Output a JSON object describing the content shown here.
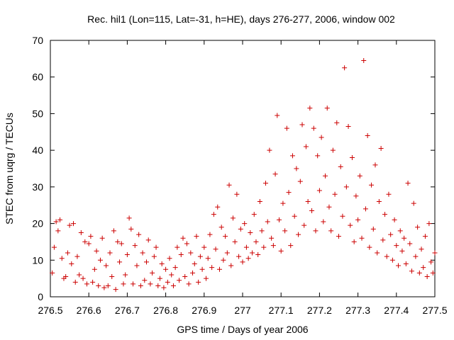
{
  "chart_data": {
    "type": "scatter",
    "title": "Rec. hil1 (Lon=115, Lat=-31, h=HE), days 276-277, 2006, window 002",
    "xlabel": "GPS time / Days of year 2006",
    "ylabel": "STEC from uqrg / TECUs",
    "xlim": [
      276.5,
      277.5
    ],
    "ylim": [
      0,
      70
    ],
    "x_ticks": [
      "276.5",
      "276.6",
      "276.7",
      "276.8",
      "276.9",
      "277",
      "277.1",
      "277.2",
      "277.3",
      "277.4",
      "277.5"
    ],
    "y_ticks": [
      "0",
      "10",
      "20",
      "30",
      "40",
      "50",
      "60",
      "70"
    ],
    "grid": false,
    "marker": "plus",
    "series_color": "#cc0000",
    "series": [
      {
        "values": [
          [
            276.505,
            6.5
          ],
          [
            276.51,
            13.5
          ],
          [
            276.515,
            20.5
          ],
          [
            276.52,
            18
          ],
          [
            276.525,
            21
          ],
          [
            276.53,
            10.5
          ],
          [
            276.535,
            5
          ],
          [
            276.54,
            5.5
          ],
          [
            276.545,
            12
          ],
          [
            276.55,
            19.5
          ],
          [
            276.555,
            9
          ],
          [
            276.56,
            20
          ],
          [
            276.565,
            4
          ],
          [
            276.57,
            11
          ],
          [
            276.575,
            6
          ],
          [
            276.58,
            17.5
          ],
          [
            276.585,
            5
          ],
          [
            276.59,
            15
          ],
          [
            276.595,
            3.5
          ],
          [
            276.6,
            14.5
          ],
          [
            276.605,
            16.5
          ],
          [
            276.61,
            4
          ],
          [
            276.615,
            7.5
          ],
          [
            276.62,
            12.5
          ],
          [
            276.625,
            3
          ],
          [
            276.63,
            10
          ],
          [
            276.635,
            16
          ],
          [
            276.64,
            2.5
          ],
          [
            276.645,
            8.5
          ],
          [
            276.65,
            3
          ],
          [
            276.655,
            12
          ],
          [
            276.66,
            5.5
          ],
          [
            276.665,
            18
          ],
          [
            276.67,
            2
          ],
          [
            276.675,
            15
          ],
          [
            276.68,
            9.5
          ],
          [
            276.685,
            14.5
          ],
          [
            276.69,
            3.5
          ],
          [
            276.695,
            6
          ],
          [
            276.7,
            11.5
          ],
          [
            276.705,
            21.5
          ],
          [
            276.71,
            18.5
          ],
          [
            276.715,
            3.5
          ],
          [
            276.72,
            14
          ],
          [
            276.725,
            8.5
          ],
          [
            276.73,
            17
          ],
          [
            276.735,
            3
          ],
          [
            276.74,
            12
          ],
          [
            276.745,
            4.5
          ],
          [
            276.75,
            9.5
          ],
          [
            276.755,
            15.5
          ],
          [
            276.76,
            3.5
          ],
          [
            276.765,
            6.5
          ],
          [
            276.77,
            11
          ],
          [
            276.775,
            13.5
          ],
          [
            276.78,
            3
          ],
          [
            276.785,
            5
          ],
          [
            276.79,
            9
          ],
          [
            276.795,
            2.5
          ],
          [
            276.8,
            7.5
          ],
          [
            276.805,
            4
          ],
          [
            276.81,
            10.5
          ],
          [
            276.815,
            6
          ],
          [
            276.82,
            3
          ],
          [
            276.825,
            8
          ],
          [
            276.83,
            13.5
          ],
          [
            276.835,
            4.5
          ],
          [
            276.84,
            11.5
          ],
          [
            276.845,
            16
          ],
          [
            276.85,
            5.5
          ],
          [
            276.855,
            14.5
          ],
          [
            276.86,
            3.5
          ],
          [
            276.865,
            12
          ],
          [
            276.87,
            6.5
          ],
          [
            276.875,
            9
          ],
          [
            276.88,
            16.5
          ],
          [
            276.885,
            4
          ],
          [
            276.89,
            11
          ],
          [
            276.895,
            7.5
          ],
          [
            276.9,
            13.5
          ],
          [
            276.905,
            5
          ],
          [
            276.91,
            10.5
          ],
          [
            276.915,
            17
          ],
          [
            276.92,
            8
          ],
          [
            276.925,
            22.5
          ],
          [
            276.93,
            13
          ],
          [
            276.935,
            24.5
          ],
          [
            276.94,
            7.5
          ],
          [
            276.945,
            19
          ],
          [
            276.95,
            10
          ],
          [
            276.955,
            16.5
          ],
          [
            276.96,
            12
          ],
          [
            276.965,
            30.5
          ],
          [
            276.97,
            8.5
          ],
          [
            276.975,
            21.5
          ],
          [
            276.98,
            15
          ],
          [
            276.985,
            28
          ],
          [
            276.99,
            11
          ],
          [
            276.995,
            18.5
          ],
          [
            277.0,
            9.5
          ],
          [
            277.005,
            20
          ],
          [
            277.01,
            13.5
          ],
          [
            277.015,
            10.5
          ],
          [
            277.02,
            17.5
          ],
          [
            277.025,
            12
          ],
          [
            277.03,
            22.5
          ],
          [
            277.035,
            15
          ],
          [
            277.04,
            11.5
          ],
          [
            277.045,
            26
          ],
          [
            277.05,
            18
          ],
          [
            277.055,
            13.5
          ],
          [
            277.06,
            31
          ],
          [
            277.065,
            20.5
          ],
          [
            277.07,
            40
          ],
          [
            277.075,
            16
          ],
          [
            277.08,
            14
          ],
          [
            277.085,
            33.5
          ],
          [
            277.09,
            49.5
          ],
          [
            277.095,
            21
          ],
          [
            277.1,
            12.5
          ],
          [
            277.105,
            25.5
          ],
          [
            277.11,
            18
          ],
          [
            277.115,
            46
          ],
          [
            277.12,
            28.5
          ],
          [
            277.125,
            14
          ],
          [
            277.13,
            38.5
          ],
          [
            277.135,
            22
          ],
          [
            277.14,
            35
          ],
          [
            277.145,
            17
          ],
          [
            277.15,
            31.5
          ],
          [
            277.155,
            47
          ],
          [
            277.16,
            19.5
          ],
          [
            277.165,
            41
          ],
          [
            277.17,
            26
          ],
          [
            277.175,
            51.5
          ],
          [
            277.18,
            23.5
          ],
          [
            277.185,
            46
          ],
          [
            277.19,
            18
          ],
          [
            277.195,
            38.5
          ],
          [
            277.2,
            29
          ],
          [
            277.205,
            43.5
          ],
          [
            277.21,
            20.5
          ],
          [
            277.215,
            33
          ],
          [
            277.22,
            51.5
          ],
          [
            277.225,
            24.5
          ],
          [
            277.23,
            18
          ],
          [
            277.235,
            40
          ],
          [
            277.24,
            28
          ],
          [
            277.245,
            47.5
          ],
          [
            277.25,
            16.5
          ],
          [
            277.255,
            35.5
          ],
          [
            277.26,
            22
          ],
          [
            277.265,
            62.5
          ],
          [
            277.27,
            30
          ],
          [
            277.275,
            46.5
          ],
          [
            277.28,
            19.5
          ],
          [
            277.285,
            38
          ],
          [
            277.29,
            15
          ],
          [
            277.295,
            27.5
          ],
          [
            277.3,
            21
          ],
          [
            277.305,
            33
          ],
          [
            277.31,
            16
          ],
          [
            277.315,
            64.5
          ],
          [
            277.32,
            24
          ],
          [
            277.325,
            44
          ],
          [
            277.33,
            13.5
          ],
          [
            277.335,
            30.5
          ],
          [
            277.34,
            18.5
          ],
          [
            277.345,
            36
          ],
          [
            277.35,
            12
          ],
          [
            277.355,
            26
          ],
          [
            277.36,
            40.5
          ],
          [
            277.365,
            15.5
          ],
          [
            277.37,
            22.5
          ],
          [
            277.375,
            11
          ],
          [
            277.38,
            28
          ],
          [
            277.385,
            17
          ],
          [
            277.39,
            10
          ],
          [
            277.395,
            21
          ],
          [
            277.4,
            14
          ],
          [
            277.405,
            8.5
          ],
          [
            277.41,
            18
          ],
          [
            277.415,
            12.5
          ],
          [
            277.42,
            16
          ],
          [
            277.425,
            9
          ],
          [
            277.43,
            31
          ],
          [
            277.435,
            14.5
          ],
          [
            277.44,
            7
          ],
          [
            277.445,
            25.5
          ],
          [
            277.45,
            11
          ],
          [
            277.455,
            19
          ],
          [
            277.46,
            6.5
          ],
          [
            277.465,
            13
          ],
          [
            277.47,
            8
          ],
          [
            277.475,
            16.5
          ],
          [
            277.48,
            5.5
          ],
          [
            277.485,
            20
          ],
          [
            277.49,
            9.5
          ],
          [
            277.495,
            6.5
          ],
          [
            277.5,
            12
          ]
        ]
      }
    ]
  }
}
